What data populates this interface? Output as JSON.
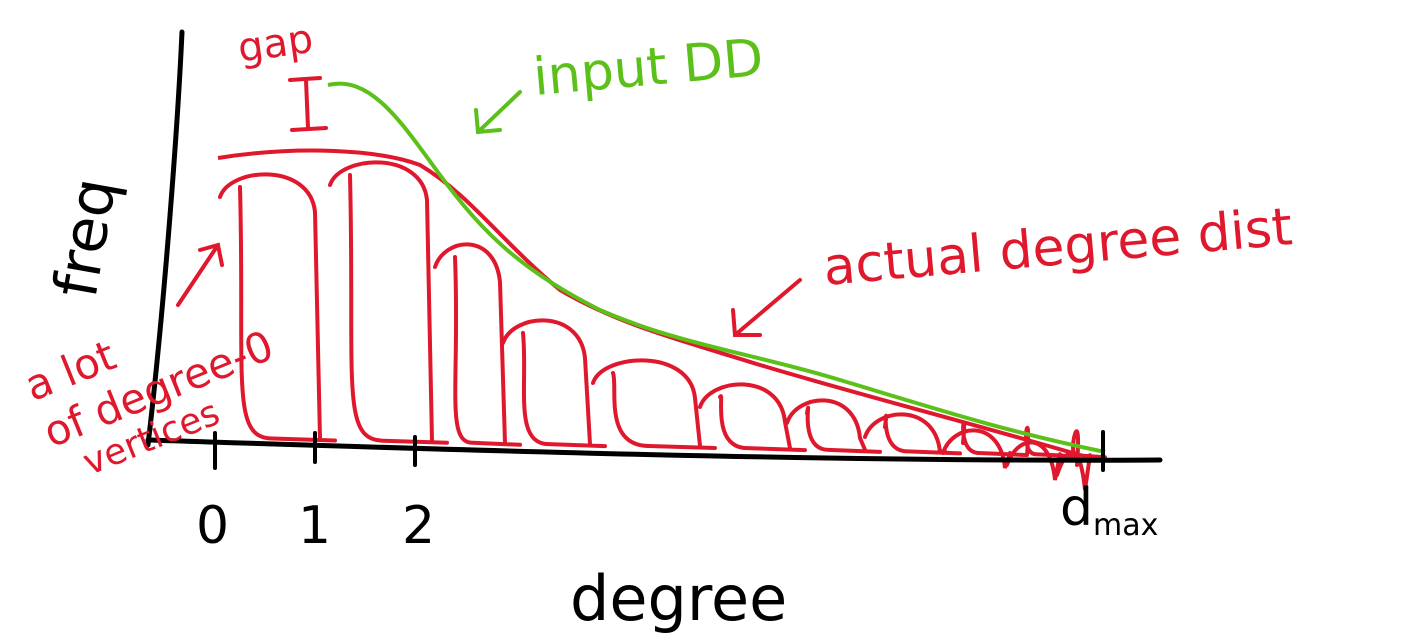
{
  "axes": {
    "y_label": "freq",
    "x_label": "degree",
    "x_tick_labels": [
      "0",
      "1",
      "2"
    ],
    "d_max": {
      "base": "d",
      "subscript": "max"
    }
  },
  "annotations": {
    "gap": "gap",
    "input": "input DD",
    "actual": "actual degree dist",
    "degree_zero": [
      "a lot",
      "of degree-0",
      "vertices"
    ]
  }
}
